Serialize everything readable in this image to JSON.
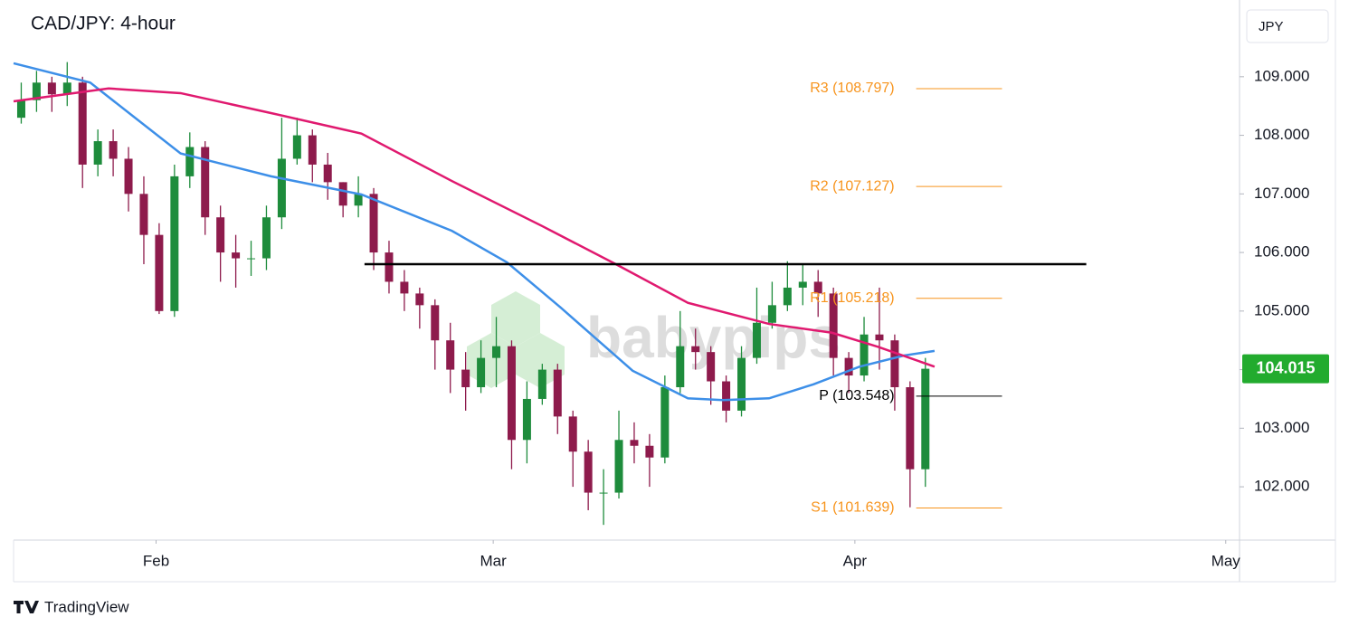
{
  "chart_data": {
    "type": "candlestick",
    "title": "CAD/JPY: 4-hour",
    "currency": "JPY",
    "watermark": "babypips",
    "brand": "TradingView",
    "up_color": "#1e8c3c",
    "down_color": "#8e1b4c",
    "xlim": [
      -0.5,
      79.5
    ],
    "xticks": [
      {
        "value": 8.8,
        "label": "Feb"
      },
      {
        "value": 30.8,
        "label": "Mar"
      },
      {
        "value": 54.4,
        "label": "Apr"
      },
      {
        "value": 78.6,
        "label": "May"
      }
    ],
    "ylim": [
      101.09,
      110.31
    ],
    "yticks": [
      {
        "value": 102,
        "label": "102.000"
      },
      {
        "value": 103,
        "label": "103.000"
      },
      {
        "value": 104,
        "label": "104.000"
      },
      {
        "value": 105,
        "label": "105.000"
      },
      {
        "value": 106,
        "label": "106.000"
      },
      {
        "value": 107,
        "label": "107.000"
      },
      {
        "value": 108,
        "label": "108.000"
      },
      {
        "value": 109,
        "label": "109.000"
      }
    ],
    "open": [
      108.3,
      108.6,
      108.9,
      108.7,
      108.9,
      107.5,
      107.9,
      107.6,
      107.0,
      106.3,
      105.0,
      107.3,
      107.8,
      106.6,
      106.0,
      105.9,
      105.9,
      106.6,
      107.6,
      108.0,
      107.5,
      107.2,
      106.8,
      107.0,
      106.0,
      105.5,
      105.3,
      105.1,
      104.5,
      104.0,
      103.7,
      104.2,
      104.4,
      102.8,
      103.5,
      104.0,
      103.2,
      102.6,
      101.9,
      101.9,
      102.8,
      102.7,
      102.5,
      103.7,
      104.4,
      104.3,
      103.8,
      103.3,
      104.2,
      104.8,
      105.1,
      105.4,
      105.5,
      105.3,
      104.2,
      103.9,
      104.6,
      104.5,
      103.7,
      102.3
    ],
    "high": [
      108.9,
      109.1,
      109.0,
      109.25,
      109.0,
      108.1,
      108.1,
      107.8,
      107.3,
      106.5,
      107.5,
      108.05,
      107.9,
      106.8,
      106.3,
      106.2,
      106.8,
      108.3,
      108.3,
      108.1,
      107.7,
      107.2,
      107.3,
      107.1,
      106.2,
      105.7,
      105.4,
      105.2,
      104.8,
      104.3,
      104.5,
      104.9,
      104.5,
      103.8,
      104.1,
      104.1,
      103.3,
      102.8,
      102.3,
      103.3,
      103.1,
      102.9,
      103.9,
      105.0,
      104.7,
      104.4,
      103.9,
      104.4,
      105.4,
      105.5,
      105.85,
      105.8,
      105.7,
      105.4,
      104.3,
      104.9,
      105.4,
      104.6,
      103.8,
      104.2
    ],
    "low": [
      108.2,
      108.4,
      108.4,
      108.5,
      107.1,
      107.3,
      107.3,
      106.7,
      105.8,
      104.95,
      104.9,
      107.1,
      106.3,
      105.5,
      105.4,
      105.6,
      105.7,
      106.4,
      107.5,
      107.2,
      106.9,
      106.6,
      106.6,
      105.7,
      105.3,
      105.0,
      104.7,
      104.0,
      103.6,
      103.3,
      103.6,
      103.7,
      102.3,
      102.4,
      103.4,
      102.9,
      102.0,
      101.6,
      101.35,
      101.8,
      102.4,
      102.0,
      102.4,
      103.6,
      104.0,
      103.4,
      103.1,
      103.2,
      104.1,
      104.7,
      105.0,
      105.1,
      104.9,
      103.9,
      103.6,
      103.8,
      104.0,
      103.3,
      101.65,
      102.0
    ],
    "close": [
      108.6,
      108.9,
      108.7,
      108.9,
      107.5,
      107.9,
      107.6,
      107.0,
      106.3,
      105.0,
      107.3,
      107.8,
      106.6,
      106.0,
      105.9,
      105.9,
      106.6,
      107.6,
      108.0,
      107.5,
      107.2,
      106.8,
      107.0,
      106.0,
      105.5,
      105.3,
      105.1,
      104.5,
      104.0,
      103.7,
      104.2,
      104.4,
      102.8,
      103.5,
      104.0,
      103.2,
      102.6,
      101.9,
      101.9,
      102.8,
      102.7,
      102.5,
      103.7,
      104.4,
      104.3,
      103.8,
      103.3,
      104.2,
      104.8,
      105.1,
      105.4,
      105.5,
      105.3,
      104.2,
      103.9,
      104.6,
      104.5,
      103.7,
      102.3,
      104.015
    ],
    "last_price": 104.015,
    "last_price_color": "#22ab2e",
    "series": [
      {
        "color": "#3d8fe8",
        "x": [
          -0.5,
          4.5,
          10.4,
          16.3,
          22.2,
          28.1,
          31.7,
          35.2,
          39.9,
          43.5,
          45.8,
          48.8,
          51.7,
          54.7,
          57.6,
          59.6
        ],
        "values": [
          109.23,
          108.9,
          107.69,
          107.3,
          106.99,
          106.37,
          105.83,
          105.06,
          103.98,
          103.51,
          103.48,
          103.51,
          103.75,
          104.05,
          104.24,
          104.32
        ]
      },
      {
        "color": "#e0196f",
        "x": [
          -0.5,
          5.7,
          10.4,
          16.3,
          22.2,
          28.1,
          34.0,
          38.8,
          43.5,
          48.8,
          52.9,
          55.9,
          59.6
        ],
        "values": [
          108.58,
          108.8,
          108.72,
          108.38,
          108.03,
          107.22,
          106.45,
          105.8,
          105.14,
          104.78,
          104.63,
          104.39,
          104.05
        ]
      }
    ],
    "resistance": {
      "value": 105.8,
      "x": [
        22.4,
        69.5
      ],
      "color": "#000000"
    },
    "pivots": {
      "x": [
        58.4,
        64.0
      ],
      "levels": [
        {
          "label": "R3 (108.797)",
          "value": 108.797,
          "color": "#f7941d"
        },
        {
          "label": "R2 (107.127)",
          "value": 107.127,
          "color": "#f7941d"
        },
        {
          "label": "R1 (105.218)",
          "value": 105.218,
          "color": "#f7941d"
        },
        {
          "label": "P (103.548)",
          "value": 103.548,
          "color": "#000000"
        },
        {
          "label": "S1 (101.639)",
          "value": 101.639,
          "color": "#f7941d"
        }
      ]
    }
  }
}
